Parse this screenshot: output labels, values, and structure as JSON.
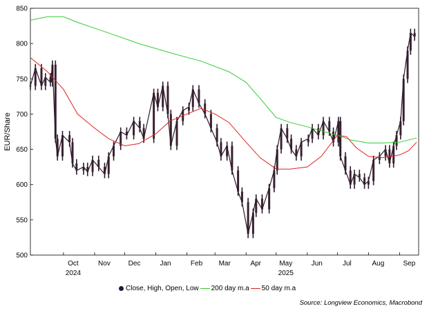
{
  "chart_data": {
    "type": "line",
    "title": "",
    "ylabel": "EUR/Share",
    "ylim": [
      500,
      850
    ],
    "yticks": [
      500,
      550,
      600,
      650,
      700,
      750,
      800,
      850
    ],
    "ytick_labels": [
      "500",
      "550",
      "600",
      "650",
      "700",
      "750",
      "800",
      "850"
    ],
    "x_start": "2024-08-29",
    "x_end": "2025-09-20",
    "month_ticks": [
      {
        "label": "Oct",
        "date": "2024-10-01",
        "year": "2024"
      },
      {
        "label": "Nov",
        "date": "2024-11-01",
        "year": ""
      },
      {
        "label": "Dec",
        "date": "2024-12-01",
        "year": ""
      },
      {
        "label": "Jan",
        "date": "2025-01-01",
        "year": ""
      },
      {
        "label": "Feb",
        "date": "2025-02-01",
        "year": ""
      },
      {
        "label": "Mar",
        "date": "2025-03-01",
        "year": ""
      },
      {
        "label": "Apr",
        "date": "2025-04-01",
        "year": ""
      },
      {
        "label": "May",
        "date": "2025-05-01",
        "year": "2025"
      },
      {
        "label": "Jun",
        "date": "2025-06-01",
        "year": ""
      },
      {
        "label": "Jul",
        "date": "2025-07-01",
        "year": ""
      },
      {
        "label": "Aug",
        "date": "2025-08-01",
        "year": ""
      },
      {
        "label": "Sep",
        "date": "2025-09-01",
        "year": ""
      }
    ],
    "legend": {
      "placement": "bottom",
      "items": [
        {
          "label": "Close, High, Open, Low",
          "color": "#1a1a3e",
          "kind": "marker"
        },
        {
          "label": "200 day m.a",
          "color": "#33cc33",
          "kind": "line"
        },
        {
          "label": "50 day m.a",
          "color": "#e02020",
          "kind": "line"
        }
      ]
    },
    "source": "Source: Longview Economics, Macrobond",
    "series": [
      {
        "name": "Close, High, Open, Low",
        "color": "#2a1a2a",
        "points": [
          {
            "x": "2024-08-29",
            "y": 740
          },
          {
            "x": "2024-09-03",
            "y": 765
          },
          {
            "x": "2024-09-09",
            "y": 740
          },
          {
            "x": "2024-09-13",
            "y": 752
          },
          {
            "x": "2024-09-18",
            "y": 745
          },
          {
            "x": "2024-09-20",
            "y": 770
          },
          {
            "x": "2024-09-23",
            "y": 665
          },
          {
            "x": "2024-09-25",
            "y": 640
          },
          {
            "x": "2024-09-30",
            "y": 670
          },
          {
            "x": "2024-10-07",
            "y": 660
          },
          {
            "x": "2024-10-10",
            "y": 630
          },
          {
            "x": "2024-10-14",
            "y": 620
          },
          {
            "x": "2024-10-21",
            "y": 625
          },
          {
            "x": "2024-10-25",
            "y": 618
          },
          {
            "x": "2024-10-30",
            "y": 635
          },
          {
            "x": "2024-11-05",
            "y": 625
          },
          {
            "x": "2024-11-11",
            "y": 615
          },
          {
            "x": "2024-11-15",
            "y": 640
          },
          {
            "x": "2024-11-20",
            "y": 655
          },
          {
            "x": "2024-11-27",
            "y": 675
          },
          {
            "x": "2024-12-03",
            "y": 670
          },
          {
            "x": "2024-12-10",
            "y": 690
          },
          {
            "x": "2024-12-16",
            "y": 680
          },
          {
            "x": "2024-12-20",
            "y": 665
          },
          {
            "x": "2024-12-30",
            "y": 730
          },
          {
            "x": "2025-01-03",
            "y": 710
          },
          {
            "x": "2025-01-08",
            "y": 740
          },
          {
            "x": "2025-01-13",
            "y": 700
          },
          {
            "x": "2025-01-16",
            "y": 655
          },
          {
            "x": "2025-01-22",
            "y": 690
          },
          {
            "x": "2025-01-28",
            "y": 705
          },
          {
            "x": "2025-02-03",
            "y": 710
          },
          {
            "x": "2025-02-07",
            "y": 735
          },
          {
            "x": "2025-02-13",
            "y": 715
          },
          {
            "x": "2025-02-19",
            "y": 700
          },
          {
            "x": "2025-02-25",
            "y": 680
          },
          {
            "x": "2025-03-03",
            "y": 660
          },
          {
            "x": "2025-03-07",
            "y": 640
          },
          {
            "x": "2025-03-13",
            "y": 655
          },
          {
            "x": "2025-03-18",
            "y": 620
          },
          {
            "x": "2025-03-24",
            "y": 590
          },
          {
            "x": "2025-03-28",
            "y": 575
          },
          {
            "x": "2025-04-03",
            "y": 530
          },
          {
            "x": "2025-04-08",
            "y": 560
          },
          {
            "x": "2025-04-11",
            "y": 580
          },
          {
            "x": "2025-04-17",
            "y": 565
          },
          {
            "x": "2025-04-24",
            "y": 595
          },
          {
            "x": "2025-04-29",
            "y": 620
          },
          {
            "x": "2025-05-02",
            "y": 650
          },
          {
            "x": "2025-05-06",
            "y": 680
          },
          {
            "x": "2025-05-12",
            "y": 665
          },
          {
            "x": "2025-05-16",
            "y": 650
          },
          {
            "x": "2025-05-21",
            "y": 640
          },
          {
            "x": "2025-05-26",
            "y": 660
          },
          {
            "x": "2025-06-02",
            "y": 665
          },
          {
            "x": "2025-06-06",
            "y": 680
          },
          {
            "x": "2025-06-12",
            "y": 670
          },
          {
            "x": "2025-06-17",
            "y": 690
          },
          {
            "x": "2025-06-23",
            "y": 675
          },
          {
            "x": "2025-06-27",
            "y": 660
          },
          {
            "x": "2025-07-02",
            "y": 690
          },
          {
            "x": "2025-07-04",
            "y": 640
          },
          {
            "x": "2025-07-09",
            "y": 620
          },
          {
            "x": "2025-07-14",
            "y": 600
          },
          {
            "x": "2025-07-18",
            "y": 615
          },
          {
            "x": "2025-07-23",
            "y": 610
          },
          {
            "x": "2025-07-28",
            "y": 600
          },
          {
            "x": "2025-08-01",
            "y": 605
          },
          {
            "x": "2025-08-06",
            "y": 635
          },
          {
            "x": "2025-08-12",
            "y": 640
          },
          {
            "x": "2025-08-18",
            "y": 650
          },
          {
            "x": "2025-08-22",
            "y": 630
          },
          {
            "x": "2025-08-26",
            "y": 655
          },
          {
            "x": "2025-08-29",
            "y": 670
          },
          {
            "x": "2025-09-02",
            "y": 690
          },
          {
            "x": "2025-09-05",
            "y": 750
          },
          {
            "x": "2025-09-09",
            "y": 790
          },
          {
            "x": "2025-09-12",
            "y": 815
          },
          {
            "x": "2025-09-16",
            "y": 810
          }
        ]
      },
      {
        "name": "200 day m.a",
        "color": "#33cc33",
        "points": [
          {
            "x": "2024-08-29",
            "y": 833
          },
          {
            "x": "2024-09-15",
            "y": 838
          },
          {
            "x": "2024-10-01",
            "y": 838
          },
          {
            "x": "2024-10-15",
            "y": 830
          },
          {
            "x": "2024-11-15",
            "y": 815
          },
          {
            "x": "2024-12-15",
            "y": 800
          },
          {
            "x": "2025-01-15",
            "y": 787
          },
          {
            "x": "2025-02-15",
            "y": 775
          },
          {
            "x": "2025-03-15",
            "y": 760
          },
          {
            "x": "2025-04-01",
            "y": 745
          },
          {
            "x": "2025-04-15",
            "y": 722
          },
          {
            "x": "2025-05-01",
            "y": 695
          },
          {
            "x": "2025-05-15",
            "y": 688
          },
          {
            "x": "2025-06-01",
            "y": 682
          },
          {
            "x": "2025-06-15",
            "y": 676
          },
          {
            "x": "2025-07-01",
            "y": 670
          },
          {
            "x": "2025-07-15",
            "y": 663
          },
          {
            "x": "2025-08-01",
            "y": 659
          },
          {
            "x": "2025-08-15",
            "y": 659
          },
          {
            "x": "2025-09-01",
            "y": 660
          },
          {
            "x": "2025-09-18",
            "y": 666
          }
        ]
      },
      {
        "name": "50 day m.a",
        "color": "#e02020",
        "points": [
          {
            "x": "2024-08-29",
            "y": 780
          },
          {
            "x": "2024-09-15",
            "y": 760
          },
          {
            "x": "2024-10-01",
            "y": 735
          },
          {
            "x": "2024-10-15",
            "y": 700
          },
          {
            "x": "2024-11-01",
            "y": 680
          },
          {
            "x": "2024-11-15",
            "y": 665
          },
          {
            "x": "2024-12-01",
            "y": 655
          },
          {
            "x": "2024-12-15",
            "y": 658
          },
          {
            "x": "2025-01-01",
            "y": 672
          },
          {
            "x": "2025-01-15",
            "y": 690
          },
          {
            "x": "2025-02-01",
            "y": 700
          },
          {
            "x": "2025-02-15",
            "y": 708
          },
          {
            "x": "2025-03-01",
            "y": 700
          },
          {
            "x": "2025-03-15",
            "y": 688
          },
          {
            "x": "2025-04-01",
            "y": 660
          },
          {
            "x": "2025-04-15",
            "y": 638
          },
          {
            "x": "2025-05-01",
            "y": 622
          },
          {
            "x": "2025-05-15",
            "y": 622
          },
          {
            "x": "2025-06-01",
            "y": 625
          },
          {
            "x": "2025-06-15",
            "y": 640
          },
          {
            "x": "2025-07-01",
            "y": 670
          },
          {
            "x": "2025-07-10",
            "y": 668
          },
          {
            "x": "2025-07-20",
            "y": 652
          },
          {
            "x": "2025-08-01",
            "y": 640
          },
          {
            "x": "2025-08-15",
            "y": 638
          },
          {
            "x": "2025-09-01",
            "y": 642
          },
          {
            "x": "2025-09-10",
            "y": 648
          },
          {
            "x": "2025-09-18",
            "y": 660
          }
        ]
      }
    ]
  }
}
